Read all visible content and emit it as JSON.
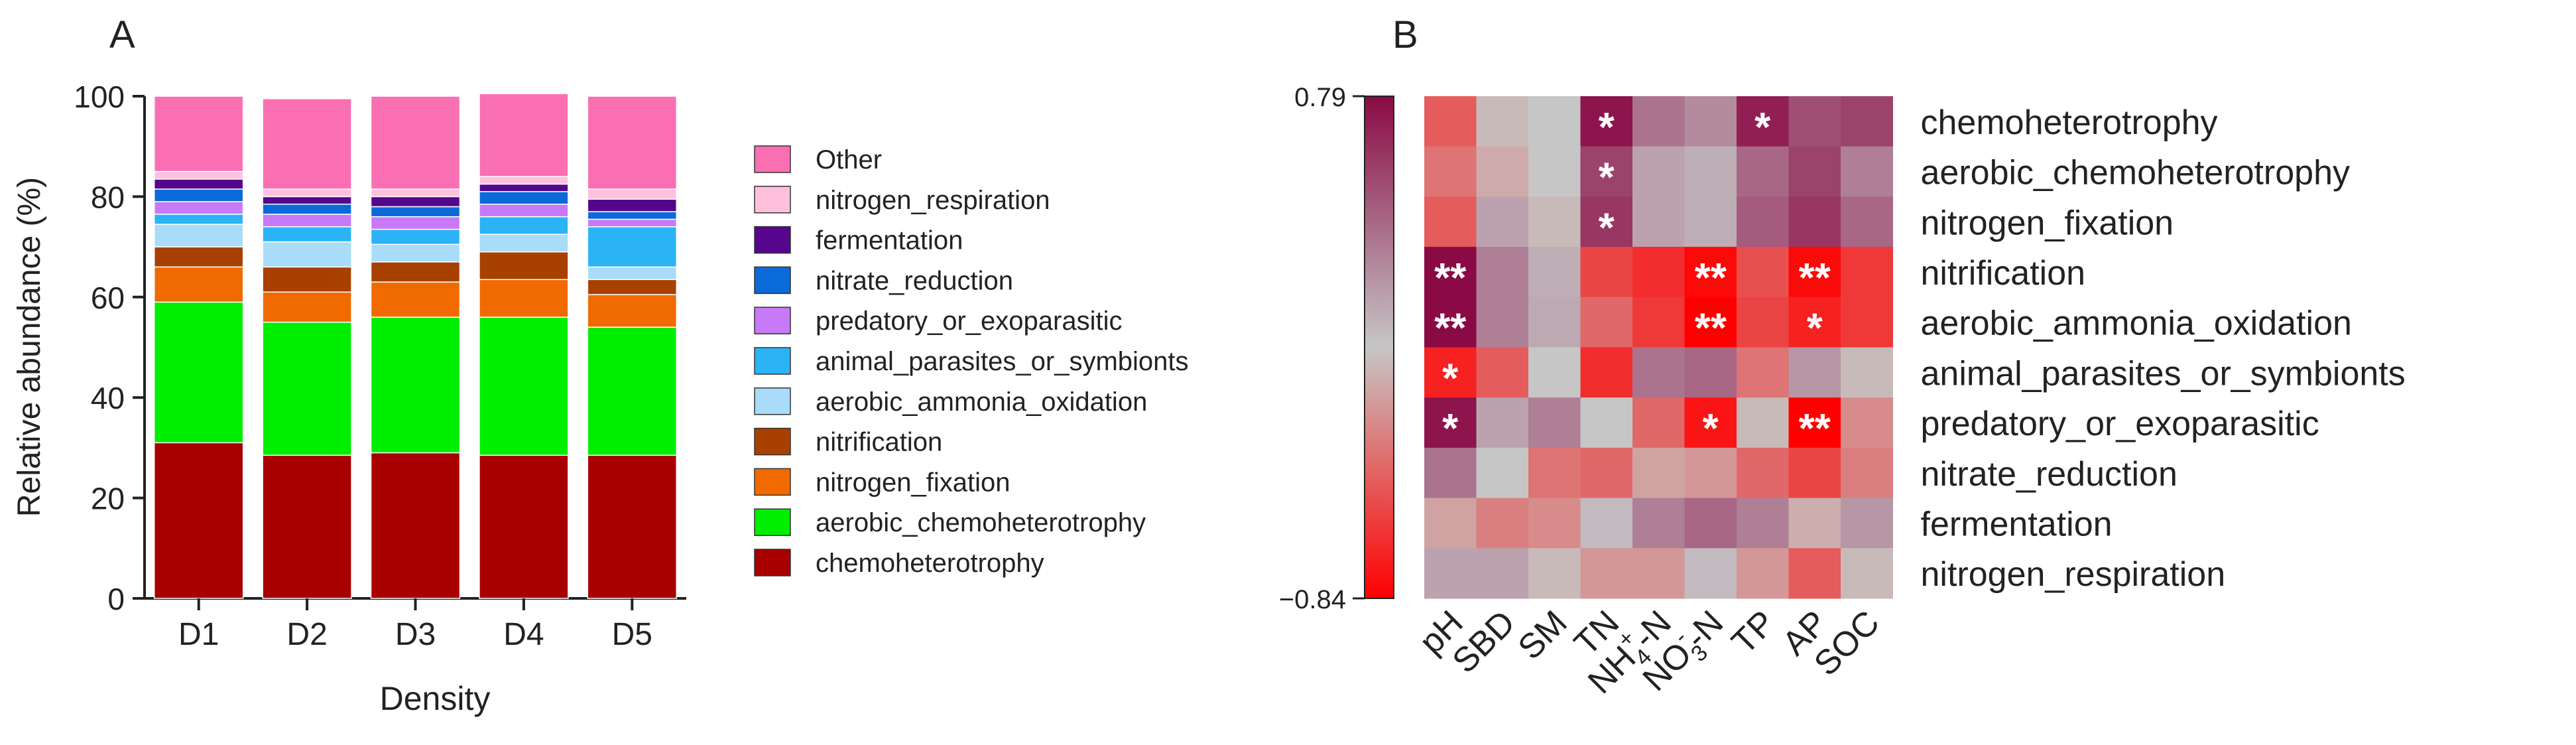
{
  "colors": {
    "chemoheterotrophy": "#a80000",
    "aerobic_chemoheterotrophy": "#00ee00",
    "nitrogen_fixation": "#f06a00",
    "nitrification": "#a84000",
    "aerobic_ammonia_oxidation": "#a8dcf8",
    "animal_parasites_or_symbionts": "#2ab4f5",
    "predatory_or_exoparasitic": "#c77af7",
    "nitrate_reduction": "#0a6ad8",
    "fermentation": "#55068c",
    "nitrogen_respiration": "#ffc0dc",
    "Other": "#fa6fb2",
    "heat_high": "#8a0a45",
    "heat_mid": "#c6c6c6",
    "heat_low": "#ff0000"
  },
  "chart_data": [
    {
      "panel_label": "A",
      "type": "bar",
      "stacked": true,
      "title": "",
      "xlabel": "Density",
      "ylabel": "Relative abundance (%)",
      "ylim": [
        0,
        100
      ],
      "yticks": [
        "0",
        "20",
        "40",
        "60",
        "80",
        "100"
      ],
      "categories": [
        "D1",
        "D2",
        "D3",
        "D4",
        "D5"
      ],
      "legend_order": [
        "Other",
        "nitrogen_respiration",
        "fermentation",
        "nitrate_reduction",
        "predatory_or_exoparasitic",
        "animal_parasites_or_symbionts",
        "aerobic_ammonia_oxidation",
        "nitrification",
        "nitrogen_fixation",
        "aerobic_chemoheterotrophy",
        "chemoheterotrophy"
      ],
      "series": [
        {
          "name": "chemoheterotrophy",
          "values": [
            31,
            28.5,
            29,
            28.5,
            28.5
          ]
        },
        {
          "name": "aerobic_chemoheterotrophy",
          "values": [
            28,
            26.5,
            27,
            27.5,
            25.5
          ]
        },
        {
          "name": "nitrogen_fixation",
          "values": [
            7,
            6,
            7,
            7.5,
            6.5
          ]
        },
        {
          "name": "nitrification",
          "values": [
            4,
            5,
            4,
            5.5,
            3
          ]
        },
        {
          "name": "aerobic_ammonia_oxidation",
          "values": [
            4.5,
            5,
            3.5,
            3.5,
            2.5
          ]
        },
        {
          "name": "animal_parasites_or_symbionts",
          "values": [
            2,
            3,
            3,
            3.5,
            8
          ]
        },
        {
          "name": "predatory_or_exoparasitic",
          "values": [
            2.5,
            2.5,
            2.5,
            2.5,
            1.5
          ]
        },
        {
          "name": "nitrate_reduction",
          "values": [
            2.5,
            2,
            2,
            2.5,
            1.5
          ]
        },
        {
          "name": "fermentation",
          "values": [
            2,
            1.5,
            2,
            1.5,
            2.5
          ]
        },
        {
          "name": "nitrogen_respiration",
          "values": [
            1.5,
            1.5,
            1.5,
            1.5,
            2
          ]
        },
        {
          "name": "Other",
          "values": [
            15,
            18,
            18.5,
            16.5,
            18.5
          ]
        }
      ]
    },
    {
      "panel_label": "B",
      "type": "heatmap",
      "title": "",
      "colorbar_max_label": "0.79",
      "colorbar_min_label": "−0.84",
      "vmin": -0.84,
      "vmax": 0.79,
      "columns": [
        {
          "base": "pH",
          "sup": "",
          "sub": "",
          "tail": ""
        },
        {
          "base": "SBD",
          "sup": "",
          "sub": "",
          "tail": ""
        },
        {
          "base": "SM",
          "sup": "",
          "sub": "",
          "tail": ""
        },
        {
          "base": "TN",
          "sup": "",
          "sub": "",
          "tail": ""
        },
        {
          "base": "NH",
          "sup": "+",
          "sub": "4",
          "tail": "-N"
        },
        {
          "base": "NO",
          "sup": "-",
          "sub": "3",
          "tail": "-N"
        },
        {
          "base": "TP",
          "sup": "",
          "sub": "",
          "tail": ""
        },
        {
          "base": "AP",
          "sup": "",
          "sub": "",
          "tail": ""
        },
        {
          "base": "SOC",
          "sup": "",
          "sub": "",
          "tail": ""
        }
      ],
      "rows": [
        "chemoheterotrophy",
        "aerobic_chemoheterotrophy",
        "nitrogen_fixation",
        "nitrification",
        "aerobic_ammonia_oxidation",
        "animal_parasites_or_symbionts",
        "predatory_or_exoparasitic",
        "nitrate_reduction",
        "fermentation",
        "nitrogen_respiration"
      ],
      "values": [
        [
          -0.45,
          -0.05,
          0.0,
          0.75,
          0.35,
          0.25,
          0.7,
          0.5,
          0.55
        ],
        [
          -0.35,
          -0.12,
          0.0,
          0.55,
          0.15,
          0.1,
          0.4,
          0.55,
          0.3
        ],
        [
          -0.45,
          0.15,
          -0.05,
          0.6,
          0.15,
          0.1,
          0.45,
          0.6,
          0.4
        ],
        [
          0.79,
          0.3,
          0.1,
          -0.55,
          -0.65,
          -0.8,
          -0.5,
          -0.8,
          -0.6
        ],
        [
          0.79,
          0.3,
          0.12,
          -0.4,
          -0.6,
          -0.84,
          -0.55,
          -0.7,
          -0.6
        ],
        [
          -0.7,
          -0.45,
          0.0,
          -0.65,
          0.35,
          0.4,
          -0.35,
          0.2,
          -0.05
        ],
        [
          0.75,
          0.15,
          0.3,
          0.0,
          -0.4,
          -0.75,
          -0.05,
          -0.84,
          -0.25
        ],
        [
          0.35,
          0.0,
          -0.35,
          -0.4,
          -0.15,
          -0.2,
          -0.4,
          -0.55,
          -0.3
        ],
        [
          -0.15,
          -0.3,
          -0.25,
          0.05,
          0.3,
          0.4,
          0.3,
          -0.1,
          0.2
        ],
        [
          0.15,
          0.15,
          -0.05,
          -0.2,
          -0.2,
          0.05,
          -0.2,
          -0.45,
          -0.05
        ]
      ],
      "significance": [
        [
          "",
          "",
          "",
          "*",
          "",
          "",
          "*",
          "",
          ""
        ],
        [
          "",
          "",
          "",
          "*",
          "",
          "",
          "",
          "",
          ""
        ],
        [
          "",
          "",
          "",
          "*",
          "",
          "",
          "",
          "",
          ""
        ],
        [
          "**",
          "",
          "",
          "",
          "",
          "**",
          "",
          "**",
          ""
        ],
        [
          "**",
          "",
          "",
          "",
          "",
          "**",
          "",
          "*",
          ""
        ],
        [
          "*",
          "",
          "",
          "",
          "",
          "",
          "",
          "",
          ""
        ],
        [
          "*",
          "",
          "",
          "",
          "",
          "*",
          "",
          "**",
          ""
        ],
        [
          "",
          "",
          "",
          "",
          "",
          "",
          "",
          "",
          ""
        ],
        [
          "",
          "",
          "",
          "",
          "",
          "",
          "",
          "",
          ""
        ],
        [
          "",
          "",
          "",
          "",
          "",
          "",
          "",
          "",
          ""
        ]
      ]
    }
  ]
}
